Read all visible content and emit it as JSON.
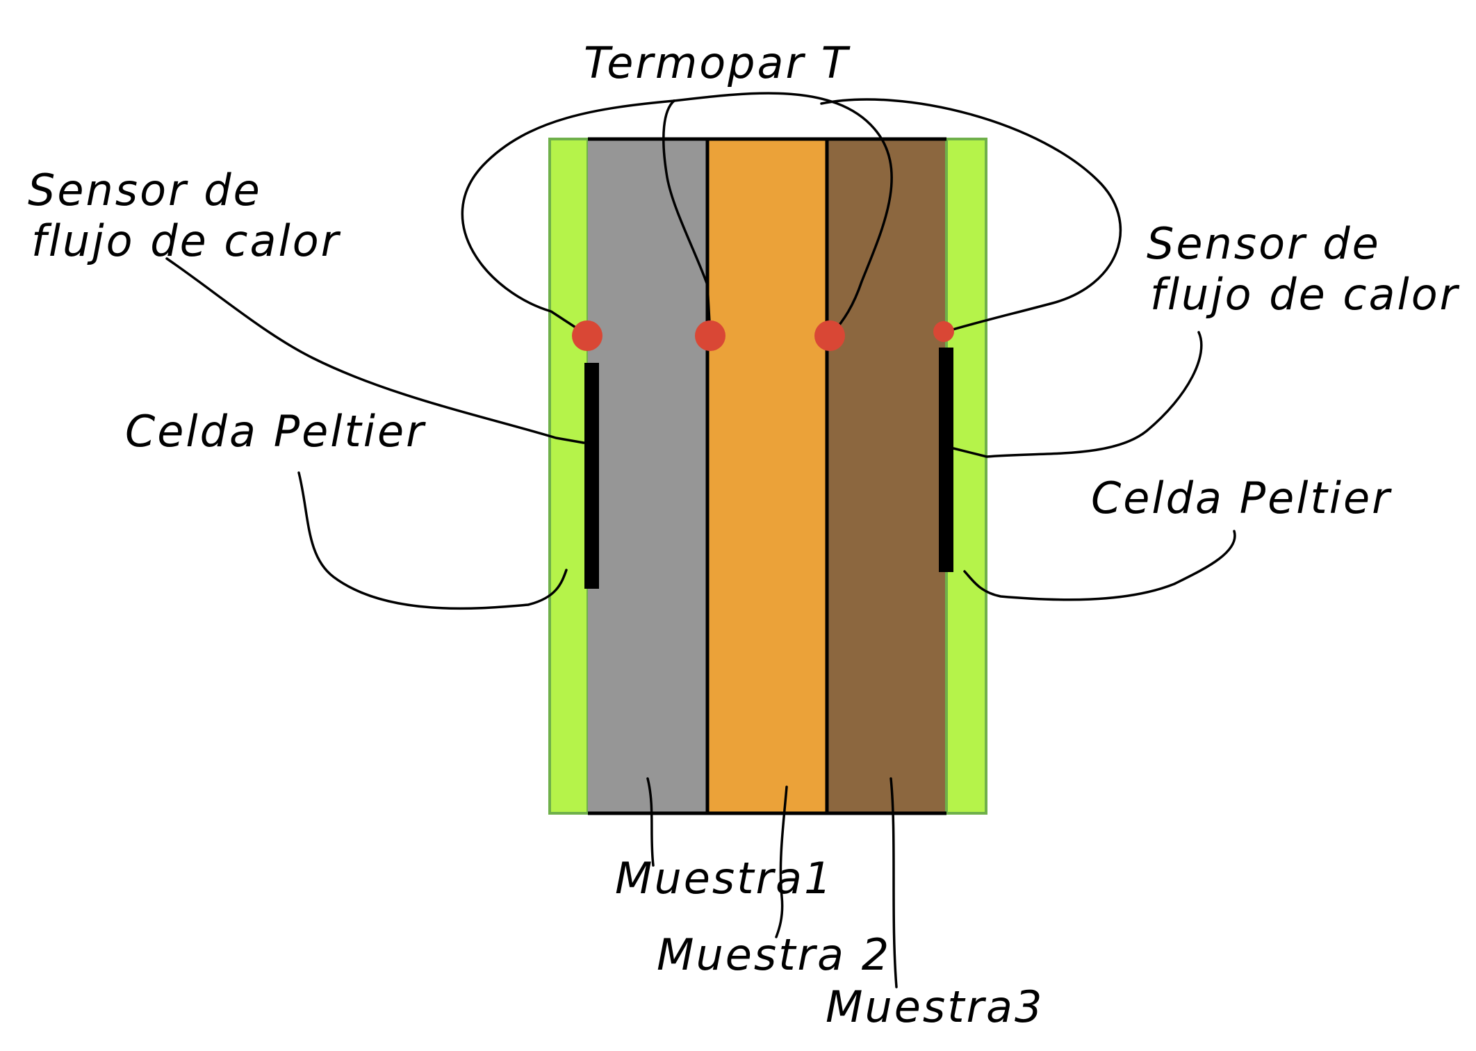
{
  "labels": {
    "thermocouple": "Termopar T",
    "heat_flux_left_line1": "Sensor de",
    "heat_flux_left_line2": "flujo de calor",
    "heat_flux_right_line1": "Sensor de",
    "heat_flux_right_line2": "flujo de calor",
    "peltier_left": "Celda Peltier",
    "peltier_right": "Celda Peltier",
    "sample1": "Muestra1",
    "sample2": "Muestra 2",
    "sample3": "Muestra3"
  },
  "colors": {
    "peltier_plate": "#b5f34a",
    "peltier_border": "#6fb04a",
    "sample1": "#969696",
    "sample2": "#eba239",
    "sample3": "#8c673f",
    "thermocouple_point": "#d94735",
    "heat_flux_sensor": "#000000",
    "line": "#000000"
  }
}
